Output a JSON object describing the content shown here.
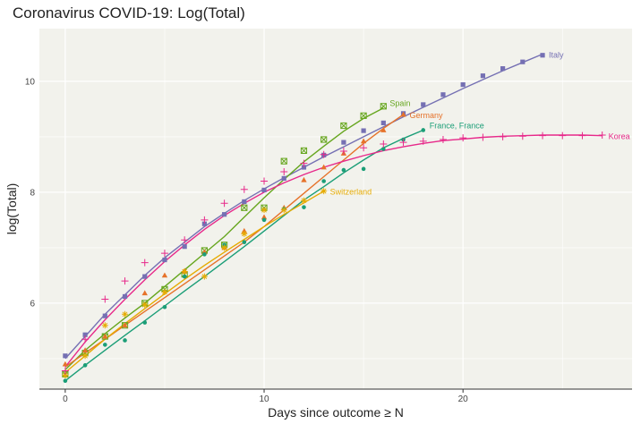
{
  "chart_data": {
    "type": "line",
    "title": "Coronavirus COVID-19: Log(Total)",
    "xlabel": "Days since outcome ≥ N",
    "ylabel": "log(Total)",
    "xlim": [
      -1.3,
      28.5
    ],
    "ylim": [
      4.45,
      10.95
    ],
    "xticks": [
      0,
      10,
      20
    ],
    "yticks": [
      6,
      8,
      10
    ],
    "grid": true,
    "colors": {
      "panel": "#f2f2ec",
      "grid": "#ffffff",
      "axis": "#333333"
    },
    "series": [
      {
        "name": "Italy",
        "color": "#7570b3",
        "marker": "square",
        "x": [
          0,
          1,
          2,
          3,
          4,
          5,
          6,
          7,
          8,
          9,
          10,
          11,
          12,
          13,
          14,
          15,
          16,
          17,
          18,
          19,
          20,
          21,
          22,
          23,
          24
        ],
        "y": [
          5.05,
          5.43,
          5.77,
          6.12,
          6.48,
          6.78,
          7.02,
          7.43,
          7.6,
          7.83,
          8.04,
          8.25,
          8.45,
          8.67,
          8.9,
          9.11,
          9.25,
          9.42,
          9.58,
          9.76,
          9.94,
          10.1,
          10.23,
          10.35,
          10.47
        ],
        "fit": [
          5.0,
          5.4,
          5.8,
          6.15,
          6.5,
          6.82,
          7.1,
          7.38,
          7.62,
          7.85,
          8.06,
          8.26,
          8.45,
          8.64,
          8.82,
          9.0,
          9.18,
          9.36,
          9.53,
          9.7,
          9.87,
          10.03,
          10.19,
          10.34,
          10.49
        ]
      },
      {
        "name": "Spain",
        "color": "#66a61e",
        "marker": "boxx",
        "x": [
          0,
          1,
          2,
          3,
          4,
          5,
          6,
          7,
          8,
          9,
          10,
          11,
          12,
          13,
          14,
          15,
          16
        ],
        "y": [
          4.72,
          5.1,
          5.4,
          5.6,
          6.0,
          6.25,
          6.52,
          6.95,
          7.05,
          7.72,
          7.72,
          8.56,
          8.75,
          8.95,
          9.2,
          9.38,
          9.55
        ],
        "fit": [
          4.8,
          5.15,
          5.45,
          5.73,
          6.0,
          6.3,
          6.6,
          6.9,
          7.2,
          7.55,
          7.9,
          8.23,
          8.55,
          8.83,
          9.1,
          9.33,
          9.52
        ]
      },
      {
        "name": "Germany",
        "color": "#e6722a",
        "marker": "triangle",
        "x": [
          0,
          1,
          2,
          3,
          4,
          5,
          6,
          7,
          8,
          9,
          10,
          11,
          12,
          13,
          14,
          15,
          16,
          17
        ],
        "y": [
          4.9,
          5.15,
          5.4,
          5.6,
          6.18,
          6.5,
          6.58,
          6.92,
          7.0,
          7.3,
          7.55,
          7.72,
          8.22,
          8.45,
          8.7,
          8.92,
          9.12,
          9.4
        ],
        "fit": [
          4.85,
          5.1,
          5.35,
          5.6,
          5.85,
          6.1,
          6.35,
          6.6,
          6.85,
          7.1,
          7.38,
          7.68,
          7.98,
          8.28,
          8.58,
          8.88,
          9.15,
          9.4
        ]
      },
      {
        "name": "France, France",
        "color": "#1b9e77",
        "marker": "circle",
        "x": [
          0,
          1,
          2,
          3,
          4,
          5,
          6,
          7,
          8,
          9,
          10,
          11,
          12,
          13,
          14,
          15,
          16,
          17,
          18
        ],
        "y": [
          4.6,
          4.88,
          5.25,
          5.33,
          5.65,
          5.93,
          6.48,
          6.88,
          7.05,
          7.1,
          7.5,
          7.7,
          7.73,
          8.2,
          8.4,
          8.42,
          8.78,
          8.95,
          9.12
        ],
        "fit": [
          4.6,
          4.88,
          5.15,
          5.42,
          5.68,
          5.95,
          6.22,
          6.48,
          6.75,
          7.02,
          7.3,
          7.58,
          7.86,
          8.1,
          8.35,
          8.58,
          8.8,
          8.97,
          9.12
        ]
      },
      {
        "name": "Switzerland",
        "color": "#e6ab02",
        "marker": "star",
        "x": [
          0,
          1,
          2,
          3,
          4,
          5,
          6,
          7,
          8,
          9,
          10,
          11,
          12,
          13
        ],
        "y": [
          4.7,
          5.05,
          5.6,
          5.8,
          5.97,
          6.2,
          6.57,
          6.48,
          7.0,
          7.25,
          7.68,
          7.68,
          7.85,
          8.02
        ],
        "fit": [
          4.75,
          5.05,
          5.35,
          5.63,
          5.9,
          6.17,
          6.43,
          6.68,
          6.92,
          7.15,
          7.38,
          7.6,
          7.81,
          8.02
        ]
      },
      {
        "name": "Korea",
        "color": "#e7298a",
        "marker": "plus",
        "x": [
          0,
          1,
          2,
          3,
          4,
          5,
          6,
          7,
          8,
          9,
          10,
          11,
          12,
          13,
          14,
          15,
          16,
          17,
          18,
          19,
          20,
          21,
          22,
          23,
          24,
          25,
          26,
          27
        ],
        "y": [
          4.78,
          5.35,
          6.07,
          6.4,
          6.73,
          6.9,
          7.14,
          7.5,
          7.8,
          8.05,
          8.2,
          8.37,
          8.52,
          8.68,
          8.74,
          8.8,
          8.87,
          8.9,
          8.92,
          8.95,
          8.98,
          8.99,
          9.0,
          9.01,
          9.02,
          9.02,
          9.02,
          9.03
        ],
        "fit": [
          4.85,
          5.3,
          5.7,
          6.07,
          6.42,
          6.75,
          7.05,
          7.33,
          7.58,
          7.8,
          8.0,
          8.17,
          8.32,
          8.45,
          8.56,
          8.66,
          8.75,
          8.82,
          8.88,
          8.93,
          8.96,
          8.99,
          9.01,
          9.02,
          9.03,
          9.03,
          9.03,
          9.02
        ]
      }
    ]
  }
}
